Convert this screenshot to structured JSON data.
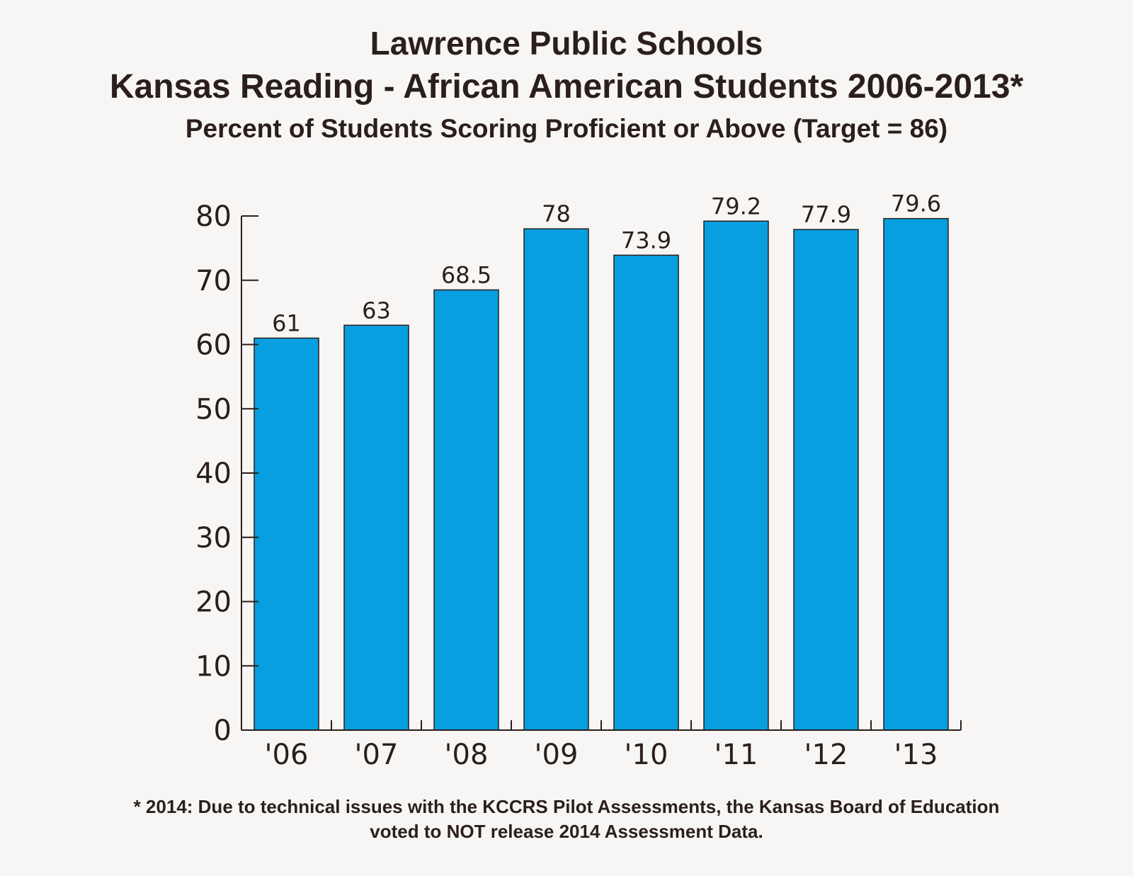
{
  "chart_data": {
    "type": "bar",
    "title": "Lawrence Public Schools",
    "subtitle": "Kansas Reading - African American Students 2006-2013*",
    "subtitle2": "Percent of Students Scoring Proficient or Above (Target = 86)",
    "categories": [
      "'06",
      "'07",
      "'08",
      "'09",
      "'10",
      "'11",
      "'12",
      "'13"
    ],
    "values": [
      61,
      63,
      68.5,
      78,
      73.9,
      79.2,
      77.9,
      79.6
    ],
    "value_labels": [
      "61",
      "63",
      "68.5",
      "78",
      "73.9",
      "79.2",
      "77.9",
      "79.6"
    ],
    "ylim": [
      0,
      80
    ],
    "yticks": [
      0,
      10,
      20,
      30,
      40,
      50,
      60,
      70,
      80
    ],
    "xlabel": "",
    "ylabel": "",
    "bar_color": "#079fe0",
    "grid": false,
    "footnote_line1": "* 2014: Due to technical issues with the KCCRS Pilot Assessments, the Kansas Board of Education",
    "footnote_line2": "voted to NOT release 2014 Assessment Data."
  }
}
